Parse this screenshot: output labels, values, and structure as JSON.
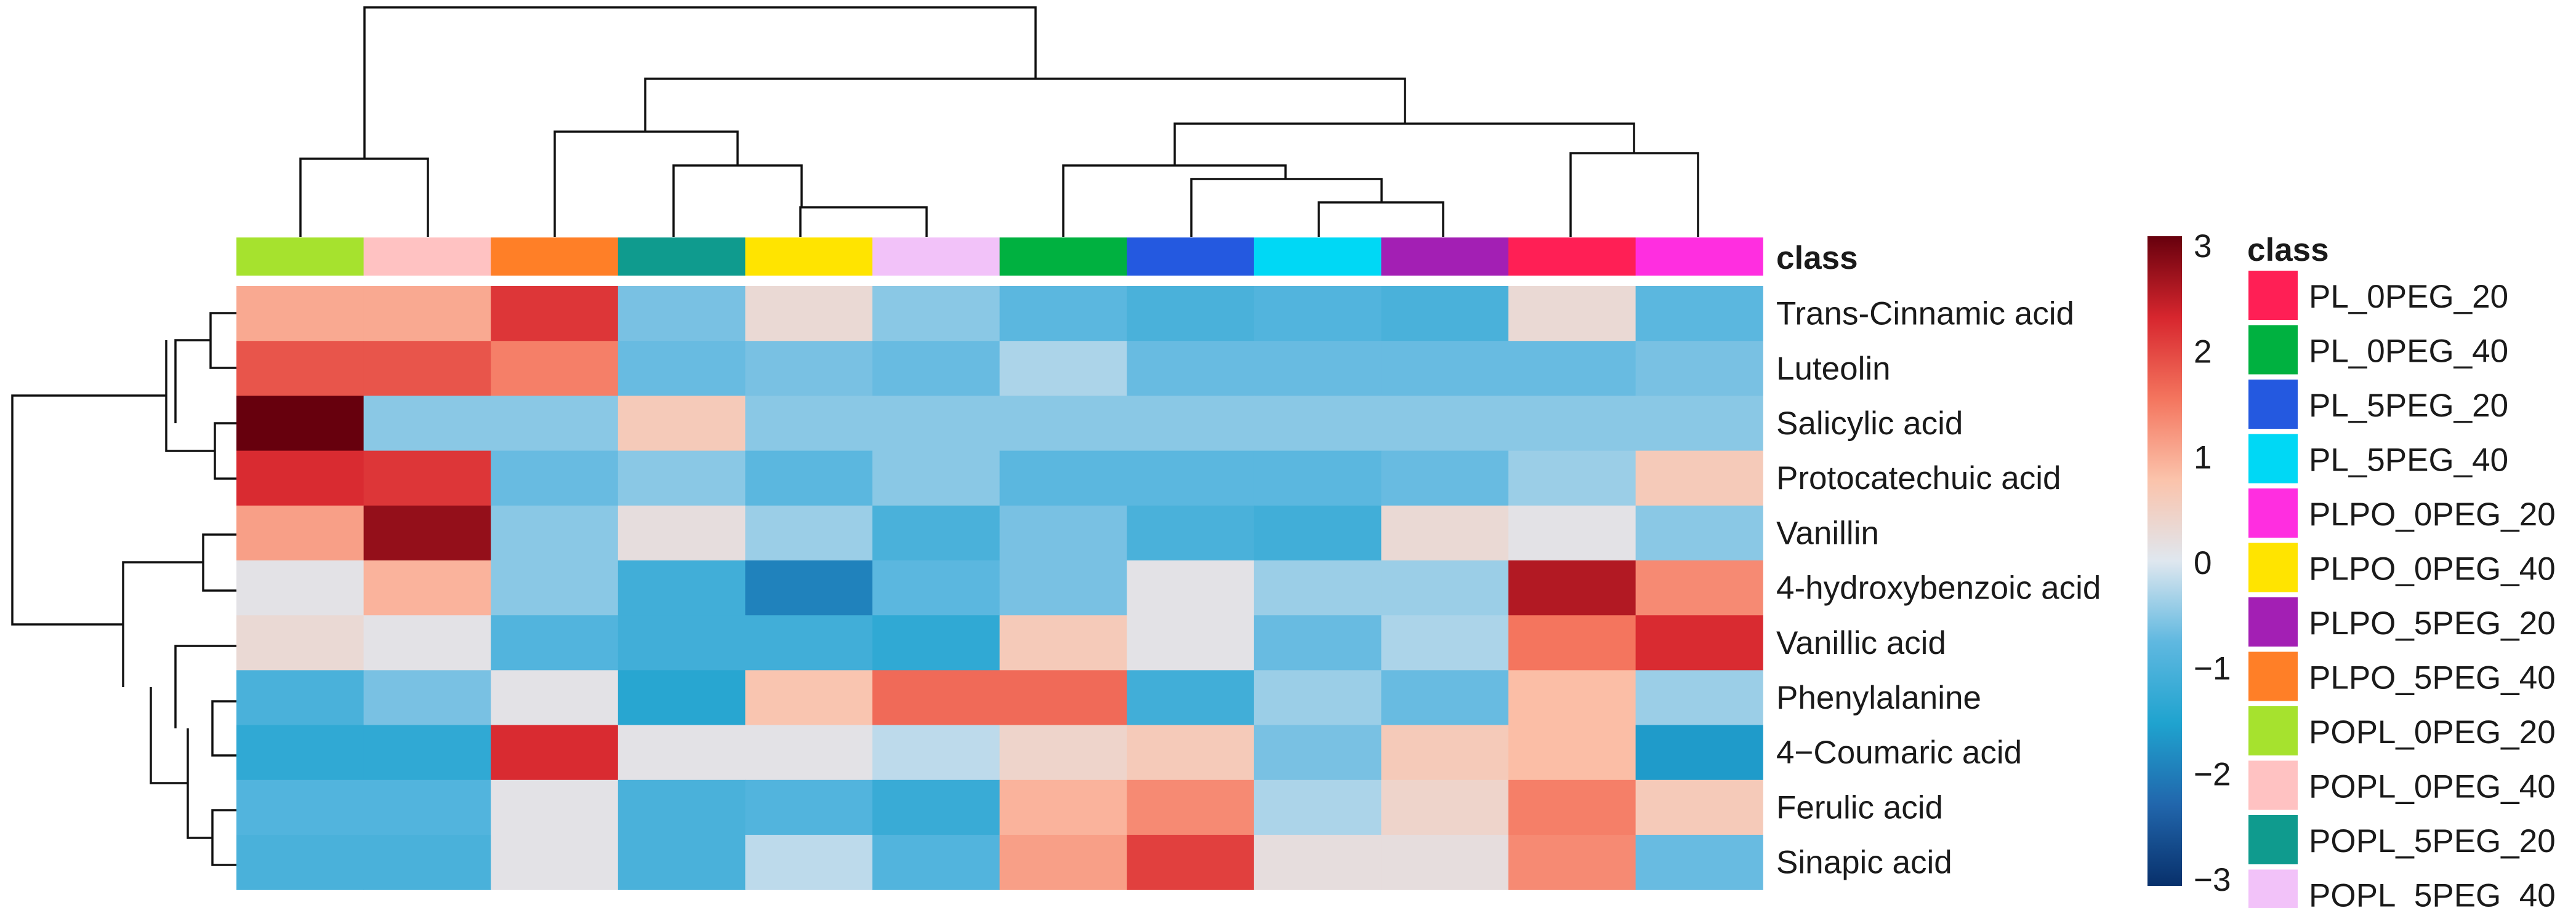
{
  "chart_data": {
    "type": "heatmap",
    "title": "",
    "class_label": "class",
    "rows": [
      "Trans-Cinnamic acid",
      "Luteolin",
      "Salicylic acid",
      "Protocatechuic acid",
      "Vanillin",
      "4-hydroxybenzoic acid",
      "Vanillic acid",
      "Phenylalanine",
      "4−Coumaric acid",
      "Ferulic acid",
      "Sinapic acid"
    ],
    "columns": [
      "POPL_0PEG_20",
      "POPL_0PEG_40",
      "PLPO_5PEG_40",
      "POPL_5PEG_20",
      "PLPO_0PEG_40",
      "POPL_5PEG_40",
      "PL_0PEG_40",
      "PL_5PEG_20",
      "PL_5PEG_40",
      "PLPO_5PEG_20",
      "PL_0PEG_20",
      "PLPO_0PEG_20"
    ],
    "values": [
      [
        1.0,
        1.0,
        2.1,
        -0.6,
        0.3,
        -0.5,
        -0.8,
        -1.0,
        -0.9,
        -1.0,
        0.3,
        -0.8
      ],
      [
        1.8,
        1.8,
        1.4,
        -0.7,
        -0.6,
        -0.7,
        -0.3,
        -0.7,
        -0.7,
        -0.7,
        -0.7,
        -0.6
      ],
      [
        3.0,
        -0.5,
        -0.5,
        0.6,
        -0.5,
        -0.5,
        -0.5,
        -0.5,
        -0.5,
        -0.5,
        -0.5,
        -0.5
      ],
      [
        2.2,
        2.1,
        -0.7,
        -0.5,
        -0.8,
        -0.5,
        -0.8,
        -0.8,
        -0.8,
        -0.7,
        -0.4,
        0.6
      ],
      [
        1.1,
        2.7,
        -0.5,
        0.2,
        -0.4,
        -1.0,
        -0.6,
        -1.0,
        -1.1,
        0.3,
        0.1,
        -0.5
      ],
      [
        0.1,
        0.9,
        -0.5,
        -1.1,
        -1.9,
        -0.8,
        -0.6,
        0.1,
        -0.4,
        -0.4,
        2.5,
        1.3
      ],
      [
        0.3,
        0.1,
        -0.9,
        -1.1,
        -1.1,
        -1.3,
        0.6,
        0.1,
        -0.7,
        -0.3,
        1.5,
        2.2
      ],
      [
        -1.0,
        -0.6,
        0.1,
        -1.4,
        0.7,
        1.6,
        1.6,
        -1.1,
        -0.4,
        -0.7,
        0.8,
        -0.4
      ],
      [
        -1.3,
        -1.3,
        2.2,
        0.1,
        0.1,
        -0.2,
        0.4,
        0.6,
        -0.6,
        0.6,
        0.8,
        -1.6
      ],
      [
        -0.9,
        -0.9,
        0.1,
        -1.0,
        -0.9,
        -1.2,
        0.9,
        1.3,
        -0.3,
        0.4,
        1.4,
        0.6
      ],
      [
        -1.0,
        -1.0,
        0.1,
        -1.0,
        -0.2,
        -0.9,
        1.1,
        2.0,
        0.2,
        0.2,
        1.3,
        -0.7
      ]
    ],
    "class_colors": {
      "POPL_0PEG_20": "#a6e22e",
      "POPL_0PEG_40": "#ffc2c2",
      "PLPO_5PEG_40": "#ff7f27",
      "POPL_5PEG_20": "#0f9b8e",
      "PLPO_0PEG_40": "#ffe400",
      "POPL_5PEG_40": "#f2c2f9",
      "PL_0PEG_40": "#00b140",
      "PL_5PEG_20": "#2459e0",
      "PL_5PEG_40": "#00d8f5",
      "PLPO_5PEG_20": "#a31fb4",
      "PL_0PEG_20": "#ff1f55",
      "PLPO_0PEG_20": "#ff2ee0"
    },
    "legend_order": [
      "PL_0PEG_20",
      "PL_0PEG_40",
      "PL_5PEG_20",
      "PL_5PEG_40",
      "PLPO_0PEG_20",
      "PLPO_0PEG_40",
      "PLPO_5PEG_20",
      "PLPO_5PEG_40",
      "POPL_0PEG_20",
      "POPL_0PEG_40",
      "POPL_5PEG_20",
      "POPL_5PEG_40"
    ],
    "color_scale": {
      "range": [
        -3,
        3
      ],
      "ticks": [
        "3",
        "2",
        "1",
        "0",
        "−1",
        "−2",
        "−3"
      ],
      "stops": [
        "#08306b",
        "#2166ac",
        "#1fa3cf",
        "#5fb8e0",
        "#dfe7ef",
        "#fbc3ab",
        "#f4755e",
        "#d7262e",
        "#67000d"
      ]
    }
  }
}
